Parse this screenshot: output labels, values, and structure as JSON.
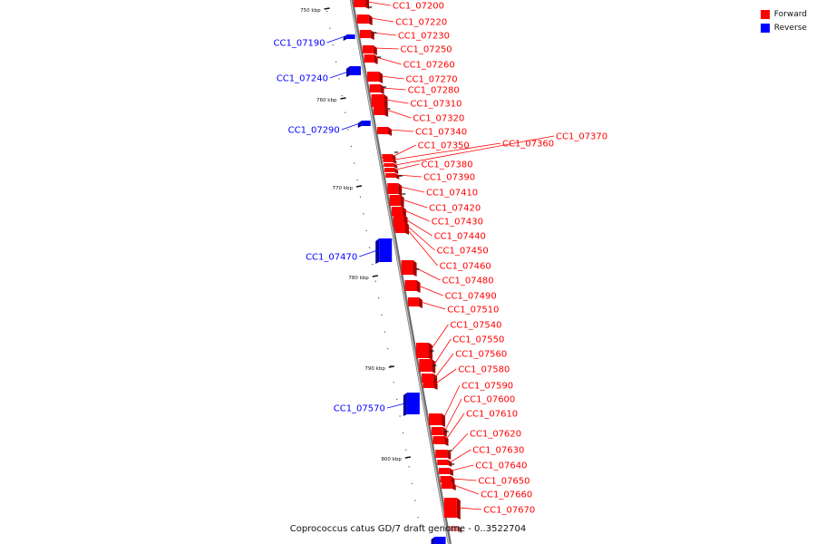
{
  "colors": {
    "forward": "#ff0000",
    "reverse": "#0000ff",
    "backbone": "#888888"
  },
  "legend": {
    "forward_label": "Forward",
    "reverse_label": "Reverse"
  },
  "footer": {
    "genome_title": "Coprococcus catus GD/7 draft genome - 0..3522704"
  },
  "scale_ticks": [
    "750 kbp",
    "760 kbp",
    "770 kbp",
    "780 kbp",
    "790 kbp",
    "800 kbp"
  ],
  "forward_genes": [
    "CC1_07200",
    "CC1_07220",
    "CC1_07230",
    "CC1_07250",
    "CC1_07260",
    "CC1_07270",
    "CC1_07280",
    "CC1_07310",
    "CC1_07320",
    "CC1_07340",
    "CC1_07350",
    "CC1_07360",
    "CC1_07370",
    "CC1_07380",
    "CC1_07390",
    "CC1_07410",
    "CC1_07420",
    "CC1_07430",
    "CC1_07440",
    "CC1_07450",
    "CC1_07460",
    "CC1_07480",
    "CC1_07490",
    "CC1_07510",
    "CC1_07540",
    "CC1_07550",
    "CC1_07560",
    "CC1_07580",
    "CC1_07590",
    "CC1_07600",
    "CC1_07610",
    "CC1_07620",
    "CC1_07630",
    "CC1_07640",
    "CC1_07650",
    "CC1_07660",
    "CC1_07670"
  ],
  "reverse_genes": [
    "CC1_07190",
    "CC1_07240",
    "CC1_07290",
    "CC1_07470",
    "CC1_07570"
  ]
}
